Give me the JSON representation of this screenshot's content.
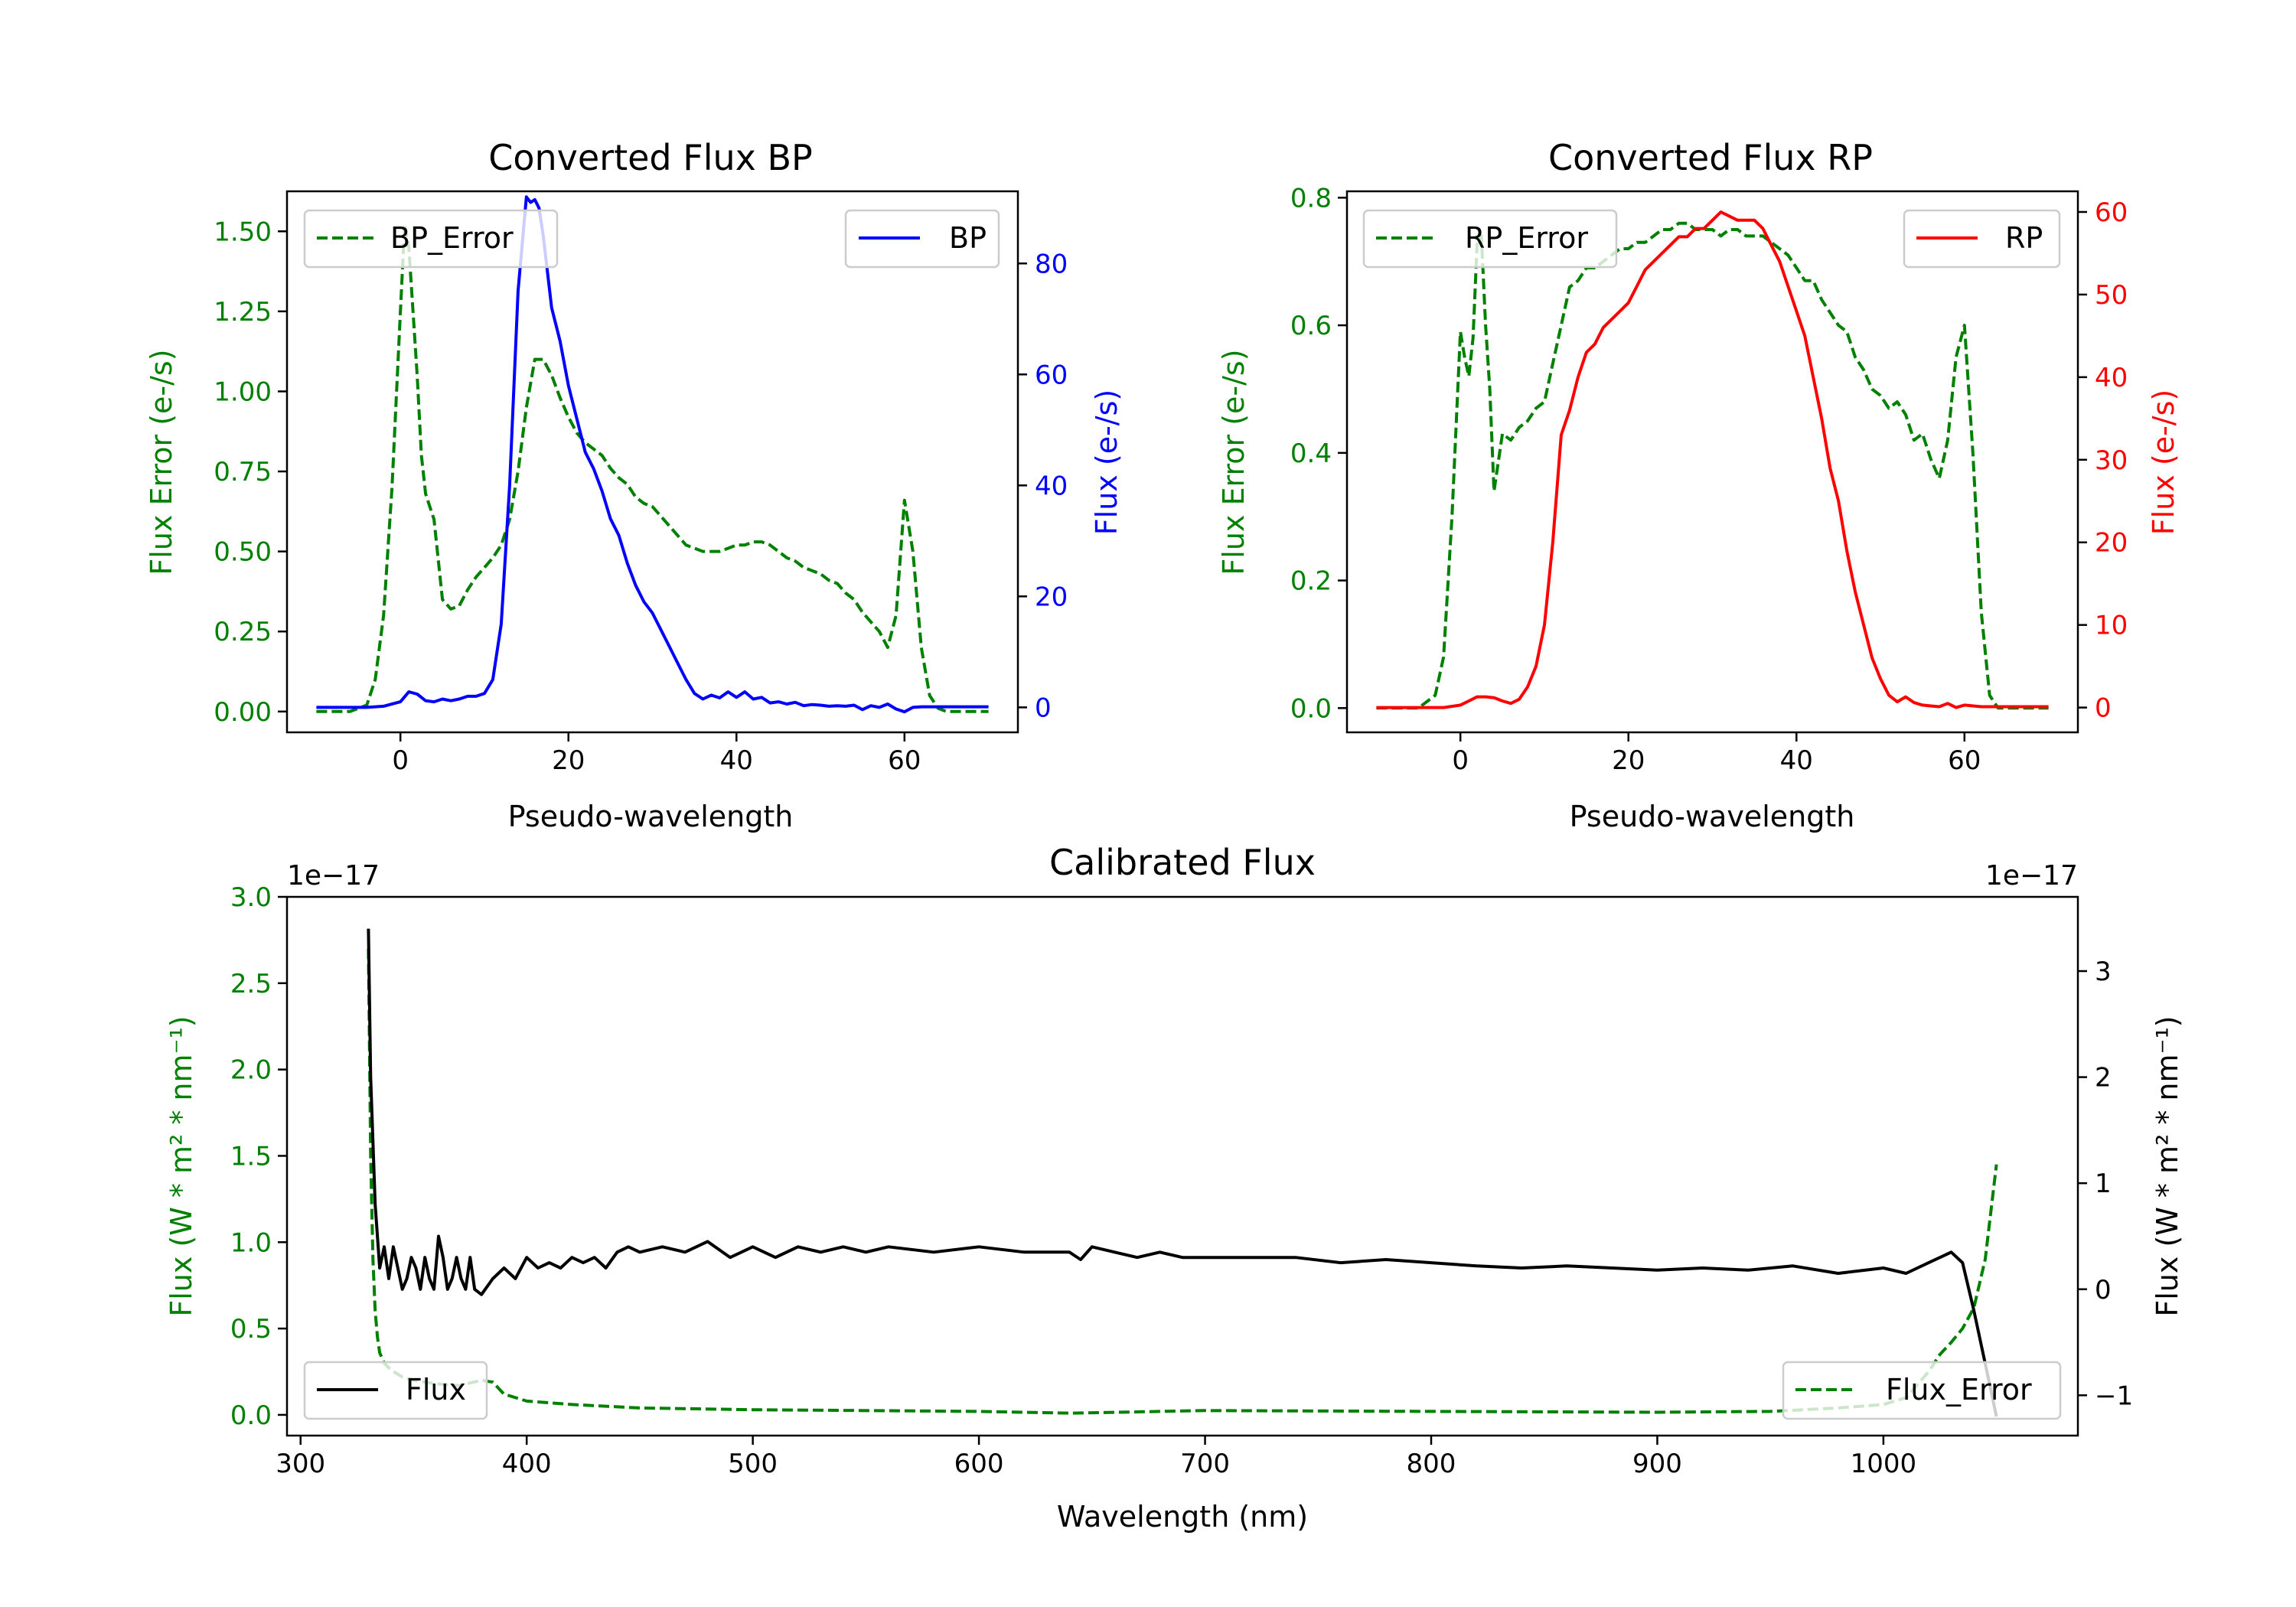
{
  "chart_data": [
    {
      "id": "bp",
      "type": "line",
      "title": "Converted Flux BP",
      "xlabel": "Pseudo-wavelength",
      "xlim": [
        -13.5,
        73.5
      ],
      "xticks": [
        0,
        20,
        40,
        60
      ],
      "left_axis": {
        "label": "Flux Error (e-/s)",
        "color": "#008000",
        "ylim": [
          -0.065,
          1.625
        ],
        "ticks": [
          0.0,
          0.25,
          0.5,
          0.75,
          1.0,
          1.25,
          1.5
        ],
        "tick_labels": [
          "0.00",
          "0.25",
          "0.50",
          "0.75",
          "1.00",
          "1.25",
          "1.50"
        ]
      },
      "right_axis": {
        "label": "Flux (e-/s)",
        "color": "#0000ff",
        "ylim": [
          -4.5,
          93
        ],
        "ticks": [
          0,
          20,
          40,
          60,
          80
        ],
        "tick_labels": [
          "0",
          "20",
          "40",
          "60",
          "80"
        ]
      },
      "series": [
        {
          "name": "BP_Error",
          "axis": "left",
          "color": "#008000",
          "dash": true,
          "legend": "upper left",
          "x": [
            -10,
            -6,
            -4,
            -3,
            -2,
            -1,
            0,
            0.5,
            1,
            2,
            2.5,
            3,
            4,
            5,
            6,
            7,
            8,
            9,
            10,
            11,
            12,
            13,
            14,
            15,
            16,
            17,
            18,
            19,
            20,
            21,
            22,
            23,
            24,
            25,
            26,
            27,
            28,
            29,
            30,
            31,
            32,
            33,
            34,
            35,
            36,
            37,
            38,
            39,
            40,
            41,
            42,
            43,
            44,
            45,
            46,
            47,
            48,
            49,
            50,
            51,
            52,
            53,
            54,
            55,
            56,
            57,
            58,
            59,
            60,
            61,
            62,
            63,
            64,
            65,
            66,
            70
          ],
          "values": [
            0.0,
            0.0,
            0.02,
            0.1,
            0.3,
            0.7,
            1.25,
            1.52,
            1.45,
            1.05,
            0.8,
            0.68,
            0.6,
            0.35,
            0.32,
            0.33,
            0.38,
            0.42,
            0.45,
            0.48,
            0.52,
            0.6,
            0.75,
            0.95,
            1.1,
            1.1,
            1.05,
            0.98,
            0.92,
            0.87,
            0.84,
            0.82,
            0.8,
            0.76,
            0.73,
            0.71,
            0.67,
            0.65,
            0.64,
            0.61,
            0.58,
            0.55,
            0.52,
            0.51,
            0.5,
            0.5,
            0.5,
            0.51,
            0.52,
            0.52,
            0.53,
            0.53,
            0.52,
            0.5,
            0.48,
            0.47,
            0.45,
            0.44,
            0.43,
            0.41,
            0.4,
            0.37,
            0.35,
            0.31,
            0.28,
            0.25,
            0.2,
            0.3,
            0.66,
            0.5,
            0.2,
            0.05,
            0.01,
            0.0,
            0.0,
            0.0
          ]
        },
        {
          "name": "BP",
          "axis": "right",
          "color": "#0000ff",
          "dash": false,
          "legend": "upper right",
          "x": [
            -10,
            -4,
            -2,
            0,
            1,
            2,
            3,
            4,
            5,
            6,
            7,
            8,
            9,
            10,
            11,
            12,
            13,
            14,
            15,
            15.5,
            16,
            16.5,
            17,
            18,
            19,
            20,
            21,
            22,
            23,
            24,
            25,
            26,
            27,
            28,
            29,
            30,
            31,
            32,
            33,
            34,
            35,
            36,
            37,
            38,
            39,
            40,
            41,
            42,
            43,
            44,
            45,
            46,
            47,
            48,
            49,
            50,
            51,
            52,
            53,
            54,
            55,
            56,
            57,
            58,
            59,
            60,
            61,
            62,
            70
          ],
          "values": [
            0,
            0,
            0.2,
            1,
            2.8,
            2.4,
            1.2,
            1.0,
            1.5,
            1.2,
            1.5,
            2.0,
            2.0,
            2.5,
            5,
            15,
            40,
            75,
            92,
            91,
            91.5,
            90,
            85,
            72,
            66,
            58,
            52,
            46,
            43,
            39,
            34,
            31,
            26,
            22,
            19,
            17,
            14,
            11,
            8,
            5,
            2.5,
            1.5,
            2.2,
            1.7,
            2.8,
            1.8,
            2.8,
            1.5,
            1.8,
            0.8,
            1.0,
            0.6,
            0.9,
            0.3,
            0.5,
            0.4,
            0.2,
            0.3,
            0.2,
            0.4,
            -0.4,
            0.3,
            0.0,
            0.6,
            -0.3,
            -0.8,
            0.0,
            0.1,
            0.1
          ]
        }
      ],
      "legend": [
        "BP_Error",
        "BP"
      ]
    },
    {
      "id": "rp",
      "type": "line",
      "title": "Converted Flux RP",
      "xlabel": "Pseudo-wavelength",
      "xlim": [
        -13.5,
        73.5
      ],
      "xticks": [
        0,
        20,
        40,
        60
      ],
      "left_axis": {
        "label": "Flux Error (e-/s)",
        "color": "#008000",
        "ylim": [
          -0.038,
          0.81
        ],
        "ticks": [
          0.0,
          0.2,
          0.4,
          0.6,
          0.8
        ],
        "tick_labels": [
          "0.0",
          "0.2",
          "0.4",
          "0.6",
          "0.8"
        ]
      },
      "right_axis": {
        "label": "Flux (e-/s)",
        "color": "#ff0000",
        "ylim": [
          -3,
          62.5
        ],
        "ticks": [
          0,
          10,
          20,
          30,
          40,
          50,
          60
        ],
        "tick_labels": [
          "0",
          "10",
          "20",
          "30",
          "40",
          "50",
          "60"
        ]
      },
      "series": [
        {
          "name": "RP_Error",
          "axis": "left",
          "color": "#008000",
          "dash": true,
          "legend": "upper left",
          "x": [
            -10,
            -5,
            -3,
            -2,
            -1,
            0,
            0.5,
            1,
            1.5,
            2,
            2.5,
            3,
            3.5,
            4,
            5,
            6,
            7,
            8,
            9,
            10,
            11,
            12,
            13,
            14,
            15,
            16,
            17,
            18,
            19,
            20,
            21,
            22,
            23,
            24,
            25,
            26,
            27,
            28,
            29,
            30,
            31,
            32,
            33,
            34,
            35,
            36,
            37,
            38,
            39,
            40,
            41,
            42,
            43,
            44,
            45,
            46,
            47,
            48,
            49,
            50,
            51,
            52,
            53,
            54,
            55,
            56,
            57,
            58,
            59,
            60,
            61,
            62,
            63,
            64,
            65,
            70
          ],
          "values": [
            0.0,
            0.0,
            0.02,
            0.08,
            0.3,
            0.59,
            0.55,
            0.52,
            0.58,
            0.73,
            0.74,
            0.6,
            0.5,
            0.34,
            0.43,
            0.42,
            0.44,
            0.45,
            0.47,
            0.48,
            0.54,
            0.6,
            0.66,
            0.67,
            0.69,
            0.69,
            0.7,
            0.71,
            0.72,
            0.72,
            0.73,
            0.73,
            0.74,
            0.75,
            0.75,
            0.76,
            0.76,
            0.75,
            0.75,
            0.75,
            0.74,
            0.75,
            0.75,
            0.74,
            0.74,
            0.74,
            0.73,
            0.72,
            0.71,
            0.69,
            0.67,
            0.67,
            0.64,
            0.62,
            0.6,
            0.59,
            0.55,
            0.53,
            0.5,
            0.49,
            0.47,
            0.48,
            0.46,
            0.42,
            0.43,
            0.39,
            0.36,
            0.42,
            0.55,
            0.6,
            0.4,
            0.15,
            0.02,
            0.0,
            0.0,
            0.0
          ]
        },
        {
          "name": "RP",
          "axis": "right",
          "color": "#ff0000",
          "dash": false,
          "legend": "upper right",
          "x": [
            -10,
            -5,
            -2,
            0,
            1,
            2,
            3,
            4,
            5,
            6,
            7,
            8,
            9,
            10,
            11,
            12,
            13,
            14,
            15,
            16,
            17,
            18,
            19,
            20,
            21,
            22,
            23,
            24,
            25,
            26,
            27,
            28,
            29,
            30,
            31,
            32,
            33,
            34,
            35,
            36,
            37,
            38,
            39,
            40,
            41,
            42,
            43,
            44,
            45,
            46,
            47,
            48,
            49,
            50,
            51,
            52,
            53,
            54,
            55,
            56,
            57,
            58,
            59,
            60,
            62,
            70
          ],
          "values": [
            0,
            0,
            0,
            0.3,
            0.8,
            1.3,
            1.3,
            1.2,
            0.8,
            0.5,
            1.0,
            2.5,
            5,
            10,
            20,
            33,
            36,
            40,
            43,
            44,
            46,
            47,
            48,
            49,
            51,
            53,
            54,
            55,
            56,
            57,
            57,
            58,
            58,
            59,
            60,
            59.5,
            59,
            59,
            59,
            58,
            56,
            54,
            51,
            48,
            45,
            40,
            35,
            29,
            25,
            19,
            14,
            10,
            6,
            3.5,
            1.5,
            0.7,
            1.3,
            0.6,
            0.3,
            0.2,
            0.1,
            0.5,
            0.0,
            0.3,
            0.1,
            0.1
          ]
        }
      ],
      "legend": [
        "RP_Error",
        "RP"
      ]
    },
    {
      "id": "cal",
      "type": "line",
      "title": "Calibrated Flux",
      "xlabel": "Wavelength (nm)",
      "xlim": [
        294,
        1086
      ],
      "xticks": [
        300,
        400,
        500,
        600,
        700,
        800,
        900,
        1000
      ],
      "left_axis": {
        "label": "Flux (W * m² * nm⁻¹)",
        "color": "#008000",
        "offset_text": "1e−17",
        "ylim": [
          -0.12,
          3.0
        ],
        "ticks": [
          0.0,
          0.5,
          1.0,
          1.5,
          2.0,
          2.5,
          3.0
        ],
        "tick_labels": [
          "0.0",
          "0.5",
          "1.0",
          "1.5",
          "2.0",
          "2.5",
          "3.0"
        ]
      },
      "right_axis": {
        "label": "Flux (W * m² * nm⁻¹)",
        "color": "#000000",
        "offset_text": "1e−17",
        "ylim": [
          -1.38,
          3.7
        ],
        "ticks": [
          -1,
          0,
          1,
          2,
          3
        ],
        "tick_labels": [
          "−1",
          "0",
          "1",
          "2",
          "3"
        ]
      },
      "series": [
        {
          "name": "Flux_Error",
          "axis": "left",
          "color": "#008000",
          "dash": true,
          "legend": "lower right",
          "x": [
            330,
            331,
            332,
            333,
            334,
            335,
            337,
            340,
            345,
            350,
            360,
            370,
            380,
            385,
            390,
            400,
            420,
            450,
            500,
            600,
            640,
            700,
            800,
            900,
            950,
            980,
            1000,
            1010,
            1020,
            1025,
            1030,
            1035,
            1040,
            1045,
            1050
          ],
          "values": [
            2.7,
            1.5,
            0.9,
            0.6,
            0.45,
            0.36,
            0.3,
            0.26,
            0.22,
            0.2,
            0.18,
            0.17,
            0.2,
            0.19,
            0.12,
            0.08,
            0.06,
            0.04,
            0.03,
            0.02,
            0.01,
            0.025,
            0.02,
            0.015,
            0.02,
            0.04,
            0.06,
            0.1,
            0.25,
            0.35,
            0.42,
            0.5,
            0.62,
            0.9,
            1.45
          ]
        },
        {
          "name": "Flux",
          "axis": "right",
          "color": "#000000",
          "dash": false,
          "legend": "lower left",
          "x": [
            330,
            331,
            333,
            335,
            337,
            339,
            341,
            343,
            345,
            347,
            349,
            351,
            353,
            355,
            357,
            359,
            361,
            363,
            365,
            367,
            369,
            371,
            373,
            375,
            377,
            380,
            385,
            390,
            395,
            400,
            405,
            410,
            415,
            420,
            425,
            430,
            435,
            440,
            445,
            450,
            460,
            470,
            480,
            490,
            500,
            510,
            520,
            530,
            540,
            550,
            560,
            580,
            600,
            620,
            640,
            645,
            650,
            660,
            670,
            680,
            690,
            700,
            720,
            740,
            760,
            780,
            800,
            820,
            840,
            860,
            880,
            900,
            920,
            940,
            960,
            980,
            1000,
            1010,
            1020,
            1030,
            1035,
            1040,
            1045,
            1050
          ],
          "values": [
            3.4,
            2.0,
            0.8,
            0.2,
            0.4,
            0.1,
            0.4,
            0.2,
            0.0,
            0.1,
            0.3,
            0.2,
            0.0,
            0.3,
            0.1,
            0.0,
            0.5,
            0.3,
            0.0,
            0.1,
            0.3,
            0.1,
            0.0,
            0.3,
            0.0,
            -0.05,
            0.1,
            0.2,
            0.1,
            0.3,
            0.2,
            0.25,
            0.2,
            0.3,
            0.25,
            0.3,
            0.2,
            0.35,
            0.4,
            0.35,
            0.4,
            0.35,
            0.45,
            0.3,
            0.4,
            0.3,
            0.4,
            0.35,
            0.4,
            0.35,
            0.4,
            0.35,
            0.4,
            0.35,
            0.35,
            0.28,
            0.4,
            0.35,
            0.3,
            0.35,
            0.3,
            0.3,
            0.3,
            0.3,
            0.25,
            0.28,
            0.25,
            0.22,
            0.2,
            0.22,
            0.2,
            0.18,
            0.2,
            0.18,
            0.22,
            0.15,
            0.2,
            0.15,
            0.25,
            0.35,
            0.25,
            -0.2,
            -0.7,
            -1.2
          ]
        }
      ],
      "legend": [
        "Flux",
        "Flux_Error"
      ]
    }
  ]
}
